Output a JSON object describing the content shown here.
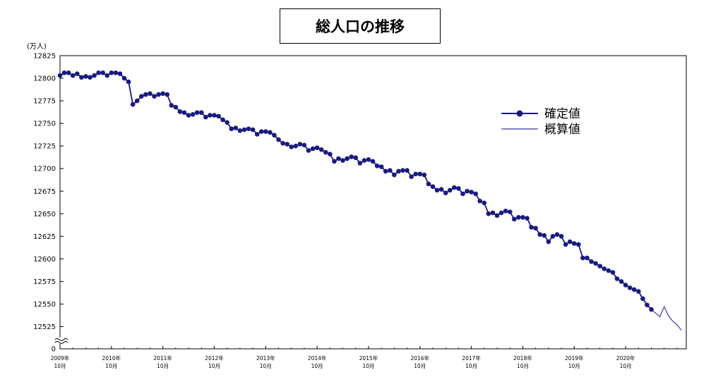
{
  "chart_data": {
    "type": "line",
    "title": "総人口の推移",
    "ylabel": "(万人)",
    "xlabel": "",
    "y_ticks": [
      "12825",
      "12800",
      "12775",
      "12750",
      "12725",
      "12700",
      "12675",
      "12650",
      "12625",
      "12600",
      "12575",
      "12550",
      "12525",
      "0"
    ],
    "ylim": [
      12515,
      12825
    ],
    "y_axis_break": true,
    "x_ticks": [
      {
        "year": "2009年",
        "month": "10月"
      },
      {
        "year": "2010年",
        "month": "10月"
      },
      {
        "year": "2011年",
        "month": "10月"
      },
      {
        "year": "2012年",
        "month": "10月"
      },
      {
        "year": "2013年",
        "month": "10月"
      },
      {
        "year": "2014年",
        "month": "10月"
      },
      {
        "year": "2015年",
        "month": "10月"
      },
      {
        "year": "2016年",
        "month": "10月"
      },
      {
        "year": "2017年",
        "month": "10月"
      },
      {
        "year": "2018年",
        "month": "10月"
      },
      {
        "year": "2019年",
        "month": "10月"
      },
      {
        "year": "2020年",
        "month": "10月"
      }
    ],
    "x_start": "2009-10",
    "grid": false,
    "legend_position": "upper-right",
    "series": [
      {
        "name": "確定値",
        "color": "#1a1a80",
        "marker": "circle",
        "values": [
          12803,
          12806,
          12806,
          12803,
          12805,
          12801,
          12802,
          12801,
          12803,
          12806,
          12806,
          12803,
          12806,
          12806,
          12805,
          12800,
          12796,
          12771,
          12775,
          12780,
          12782,
          12783,
          12780,
          12782,
          12783,
          12782,
          12770,
          12768,
          12763,
          12762,
          12759,
          12760,
          12762,
          12762,
          12757,
          12759,
          12759,
          12758,
          12754,
          12751,
          12744,
          12745,
          12742,
          12743,
          12744,
          12743,
          12738,
          12741,
          12741,
          12740,
          12737,
          12732,
          12728,
          12727,
          12724,
          12725,
          12727,
          12726,
          12720,
          12722,
          12723,
          12721,
          12718,
          12716,
          12708,
          12711,
          12709,
          12711,
          12713,
          12712,
          12706,
          12709,
          12710,
          12708,
          12703,
          12702,
          12697,
          12698,
          12693,
          12697,
          12698,
          12698,
          12691,
          12694,
          12694,
          12693,
          12683,
          12680,
          12676,
          12677,
          12673,
          12676,
          12679,
          12678,
          12672,
          12675,
          12674,
          12672,
          12664,
          12662,
          12650,
          12651,
          12648,
          12651,
          12653,
          12652,
          12644,
          12646,
          12646,
          12645,
          12635,
          12634,
          12627,
          12626,
          12619,
          12625,
          12627,
          12625,
          12616,
          12619,
          12617,
          12616,
          12601,
          12601,
          12597,
          12595,
          12592,
          12589,
          12587,
          12585,
          12578,
          12575,
          12571,
          12568,
          12566,
          12564,
          12556,
          12549,
          12544
        ]
      },
      {
        "name": "概算値",
        "color": "#3a3aa8",
        "marker": "none",
        "values": [
          12544,
          12540,
          12536,
          12547,
          12537,
          12531,
          12527,
          12521
        ]
      }
    ]
  }
}
